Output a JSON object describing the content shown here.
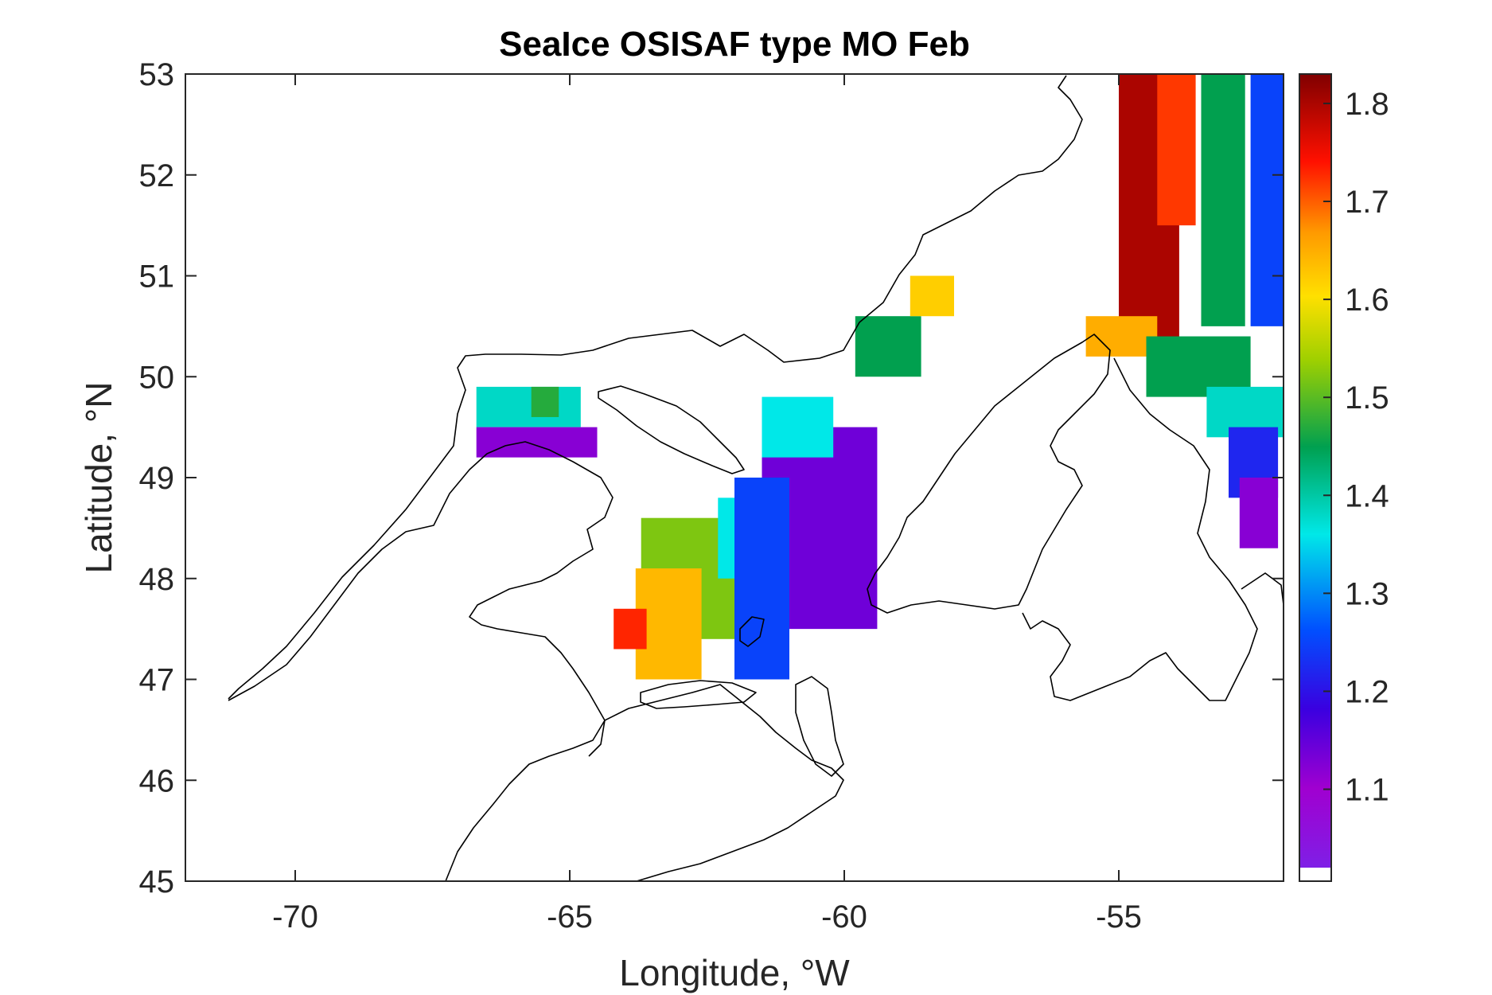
{
  "title": "SeaIce OSISAF type MO Feb",
  "xlabel": "Longitude, °W",
  "ylabel": "Latitude, °N",
  "chart_data": {
    "type": "heatmap",
    "title": "SeaIce OSISAF type MO Feb",
    "xlabel": "Longitude, °W",
    "ylabel": "Latitude, °N",
    "xlim": [
      -72,
      -52
    ],
    "ylim": [
      45,
      53
    ],
    "x_ticks": [
      "-70",
      "-65",
      "-60",
      "-55"
    ],
    "x_tick_values": [
      -70,
      -65,
      -60,
      -55
    ],
    "y_ticks": [
      "53",
      "52",
      "51",
      "50",
      "49",
      "48",
      "47",
      "46",
      "45"
    ],
    "y_tick_values": [
      53,
      52,
      51,
      50,
      49,
      48,
      47,
      46,
      45
    ],
    "colorbar": {
      "min": 1.02,
      "max": 1.83,
      "ticks": [
        "1.8",
        "1.7",
        "1.6",
        "1.5",
        "1.4",
        "1.3",
        "1.2",
        "1.1"
      ],
      "tick_values": [
        1.8,
        1.7,
        1.6,
        1.5,
        1.4,
        1.3,
        1.2,
        1.1
      ],
      "colormap": "jet-like rainbow: purple (low) to dark red (high)"
    },
    "regions": [
      {
        "lon": [
          -55,
          -53.9
        ],
        "lat": [
          50.3,
          53.0
        ],
        "value": 1.8
      },
      {
        "lon": [
          -54.3,
          -53.6
        ],
        "lat": [
          51.5,
          53.0
        ],
        "value": 1.72
      },
      {
        "lon": [
          -53.5,
          -52.7
        ],
        "lat": [
          50.5,
          53.0
        ],
        "value": 1.45
      },
      {
        "lon": [
          -52.6,
          -52.0
        ],
        "lat": [
          50.5,
          53.0
        ],
        "value": 1.25
      },
      {
        "lon": [
          -55.6,
          -54.3
        ],
        "lat": [
          50.2,
          50.6
        ],
        "value": 1.65
      },
      {
        "lon": [
          -54.5,
          -52.6
        ],
        "lat": [
          49.8,
          50.4
        ],
        "value": 1.45
      },
      {
        "lon": [
          -53.4,
          -52.0
        ],
        "lat": [
          49.4,
          49.9
        ],
        "value": 1.38
      },
      {
        "lon": [
          -53.0,
          -52.1
        ],
        "lat": [
          48.8,
          49.5
        ],
        "value": 1.22
      },
      {
        "lon": [
          -52.8,
          -52.1
        ],
        "lat": [
          48.3,
          49.0
        ],
        "value": 1.12
      },
      {
        "lon": [
          -63.7,
          -62.0
        ],
        "lat": [
          47.4,
          48.6
        ],
        "value": 1.52
      },
      {
        "lon": [
          -63.8,
          -62.6
        ],
        "lat": [
          47.0,
          48.1
        ],
        "value": 1.64
      },
      {
        "lon": [
          -64.2,
          -63.6
        ],
        "lat": [
          47.3,
          47.7
        ],
        "value": 1.73
      },
      {
        "lon": [
          -62.3,
          -61.5
        ],
        "lat": [
          48.0,
          48.8
        ],
        "value": 1.36
      },
      {
        "lon": [
          -61.5,
          -59.4
        ],
        "lat": [
          47.5,
          49.5
        ],
        "value": 1.14
      },
      {
        "lon": [
          -62.0,
          -61.0
        ],
        "lat": [
          47.0,
          49.0
        ],
        "value": 1.25
      },
      {
        "lon": [
          -61.5,
          -60.2
        ],
        "lat": [
          49.2,
          49.8
        ],
        "value": 1.36
      },
      {
        "lon": [
          -59.8,
          -58.6
        ],
        "lat": [
          50.0,
          50.6
        ],
        "value": 1.45
      },
      {
        "lon": [
          -58.8,
          -58.0
        ],
        "lat": [
          50.6,
          51.0
        ],
        "value": 1.62
      },
      {
        "lon": [
          -66.7,
          -64.8
        ],
        "lat": [
          49.5,
          49.9
        ],
        "value": 1.38
      },
      {
        "lon": [
          -65.7,
          -65.2
        ],
        "lat": [
          49.6,
          49.9
        ],
        "value": 1.47
      },
      {
        "lon": [
          -66.7,
          -64.5
        ],
        "lat": [
          49.2,
          49.5
        ],
        "value": 1.12
      }
    ]
  }
}
